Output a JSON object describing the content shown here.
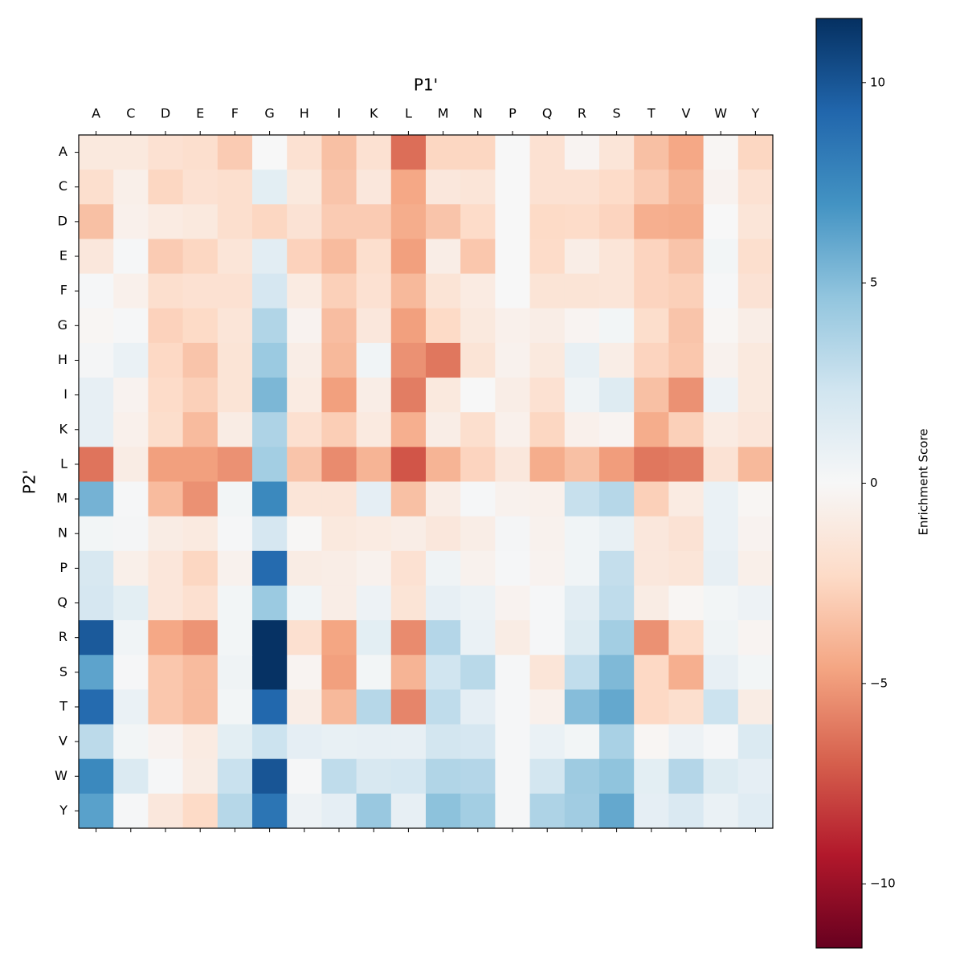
{
  "chart_data": {
    "type": "heatmap",
    "x_label": "P1'",
    "y_label": "P2'",
    "colorbar_label": "Enrichment Score",
    "colormap": "RdBu",
    "x_categories": [
      "A",
      "C",
      "D",
      "E",
      "F",
      "G",
      "H",
      "I",
      "K",
      "L",
      "M",
      "N",
      "P",
      "Q",
      "R",
      "S",
      "T",
      "V",
      "W",
      "Y"
    ],
    "y_categories": [
      "A",
      "C",
      "D",
      "E",
      "F",
      "G",
      "H",
      "I",
      "K",
      "L",
      "M",
      "N",
      "P",
      "Q",
      "R",
      "S",
      "T",
      "V",
      "W",
      "Y"
    ],
    "zlim": [
      -11.6,
      11.6
    ],
    "zticks": [
      {
        "value": -10,
        "label": "−10"
      },
      {
        "value": -5,
        "label": "−5"
      },
      0,
      5,
      10
    ],
    "values": [
      [
        -1.2,
        -1.2,
        -1.8,
        -2,
        -3,
        0,
        -1.8,
        -3.5,
        -1.8,
        -6.5,
        -2.5,
        -2.5,
        0,
        -1.8,
        -0.3,
        -1.5,
        -3.5,
        -4.5,
        -0.2,
        -2.5
      ],
      [
        -2,
        -0.7,
        -2.5,
        -1.8,
        -2,
        1.2,
        -1.2,
        -3.3,
        -1.3,
        -4.5,
        -1.3,
        -1.5,
        0,
        -1.8,
        -1.8,
        -2.2,
        -3,
        -4,
        -0.4,
        -1.8
      ],
      [
        -3.5,
        -0.6,
        -1,
        -1.2,
        -2,
        -2.5,
        -1.7,
        -3,
        -3,
        -4.3,
        -3.3,
        -2.2,
        0,
        -2.3,
        -2.2,
        -2.6,
        -4.2,
        -4.3,
        0,
        -1.5
      ],
      [
        -1.3,
        0.1,
        -3,
        -2.5,
        -1.5,
        1.3,
        -2.7,
        -3.7,
        -2,
        -4.8,
        -0.8,
        -3.2,
        0,
        -2.2,
        -0.8,
        -1.5,
        -2.6,
        -3.3,
        0.3,
        -2
      ],
      [
        0.1,
        -0.6,
        -2,
        -1.8,
        -1.8,
        2,
        -1,
        -2.8,
        -1.8,
        -3.8,
        -1.6,
        -1,
        0,
        -1.6,
        -1.6,
        -1.5,
        -2.6,
        -2.8,
        0.1,
        -1.7
      ],
      [
        -0.2,
        0.1,
        -2.7,
        -2.3,
        -1.5,
        3.5,
        -0.4,
        -3.6,
        -1.3,
        -4.8,
        -2.3,
        -1.2,
        -0.6,
        -0.8,
        -0.3,
        0.3,
        -2.1,
        -3.3,
        -0.2,
        -0.8
      ],
      [
        0.2,
        0.8,
        -2.4,
        -3.3,
        -1.6,
        4.3,
        -0.8,
        -3.8,
        0.4,
        -5.3,
        -6.2,
        -1.6,
        -0.5,
        -1.2,
        0.9,
        -0.8,
        -2.6,
        -3.2,
        -0.5,
        -1.2
      ],
      [
        1,
        -0.4,
        -2.2,
        -2.8,
        -1.6,
        5.3,
        -1,
        -4.8,
        -0.8,
        -6,
        -1.2,
        0,
        -0.8,
        -1.8,
        0.5,
        1.5,
        -3.5,
        -5.3,
        0.6,
        -1.2
      ],
      [
        1,
        -0.6,
        -2.1,
        -3.7,
        -0.9,
        3.6,
        -1.9,
        -2.9,
        -1.1,
        -4.2,
        -0.8,
        -2,
        -0.6,
        -2.5,
        -0.6,
        -0.3,
        -4.3,
        -2.8,
        -1,
        -1.4
      ],
      [
        -6.3,
        -0.9,
        -4.8,
        -4.8,
        -5.3,
        4,
        -3.3,
        -5.5,
        -4,
        -7.3,
        -4,
        -2.6,
        -1.3,
        -4.3,
        -3.5,
        -4.9,
        -6.2,
        -6,
        -1.7,
        -3.8
      ],
      [
        5.5,
        0.1,
        -3.7,
        -5.3,
        0.3,
        7.5,
        -1.5,
        -1.5,
        1.1,
        -3.5,
        -0.8,
        0.1,
        -0.5,
        -0.6,
        2.7,
        3.3,
        -2.8,
        -1,
        0.8,
        -0.2
      ],
      [
        0.3,
        0.2,
        -0.9,
        -1.1,
        0.1,
        2,
        -0.1,
        -1.2,
        -1,
        -0.8,
        -1.3,
        -0.8,
        0.2,
        -0.5,
        0.4,
        0.9,
        -1.3,
        -1.7,
        0.8,
        -0.4
      ],
      [
        1.9,
        -0.7,
        -1.4,
        -2.5,
        -0.5,
        9,
        -0.9,
        -0.8,
        -0.5,
        -1.8,
        0.5,
        -0.5,
        0.1,
        -0.4,
        0.4,
        2.8,
        -1.3,
        -1.5,
        1,
        -0.7
      ],
      [
        2,
        1.2,
        -1.4,
        -1.9,
        0.3,
        4.3,
        0.4,
        -0.8,
        0.6,
        -1.6,
        1,
        0.7,
        -0.4,
        0.1,
        1.3,
        3,
        -0.9,
        -0.2,
        0.3,
        0.6
      ],
      [
        9.8,
        0.4,
        -4.5,
        -5.2,
        0.3,
        11.5,
        -1.9,
        -4.6,
        1.2,
        -5.5,
        3.4,
        0.8,
        -0.9,
        0.1,
        1.6,
        4,
        -5.3,
        -2.2,
        0.5,
        -0.3
      ],
      [
        6.2,
        0.1,
        -3.2,
        -3.7,
        0.5,
        11.5,
        -0.3,
        -4.8,
        0.3,
        -4,
        2.3,
        3.2,
        0.1,
        -1.5,
        2.9,
        5.2,
        -2.4,
        -4.2,
        1,
        0.3
      ],
      [
        9,
        0.8,
        -3.2,
        -3.7,
        0.3,
        9.2,
        -0.8,
        -3.8,
        3.3,
        -5.7,
        3,
        1.1,
        0.1,
        -0.6,
        5,
        6,
        -2.4,
        -2,
        2.5,
        -0.9
      ],
      [
        3.1,
        0.3,
        -0.4,
        -1,
        1.2,
        2.5,
        1.1,
        0.9,
        1,
        1,
        2.2,
        2,
        0.1,
        0.8,
        0.3,
        3.8,
        -0.2,
        0.6,
        0.1,
        1.7
      ],
      [
        7.5,
        1.7,
        0.1,
        -0.9,
        2.6,
        10,
        0.1,
        3,
        1.9,
        2.1,
        3.5,
        3.4,
        0.1,
        2.2,
        4.2,
        4.7,
        1.2,
        3.4,
        1.6,
        1.1
      ],
      [
        6.3,
        0.1,
        -1.3,
        -2.3,
        3.3,
        8.5,
        0.6,
        1.1,
        4.4,
        1,
        4.8,
        4,
        0.1,
        3.6,
        4.1,
        6,
        1.1,
        1.8,
        0.8,
        1.4
      ]
    ]
  }
}
